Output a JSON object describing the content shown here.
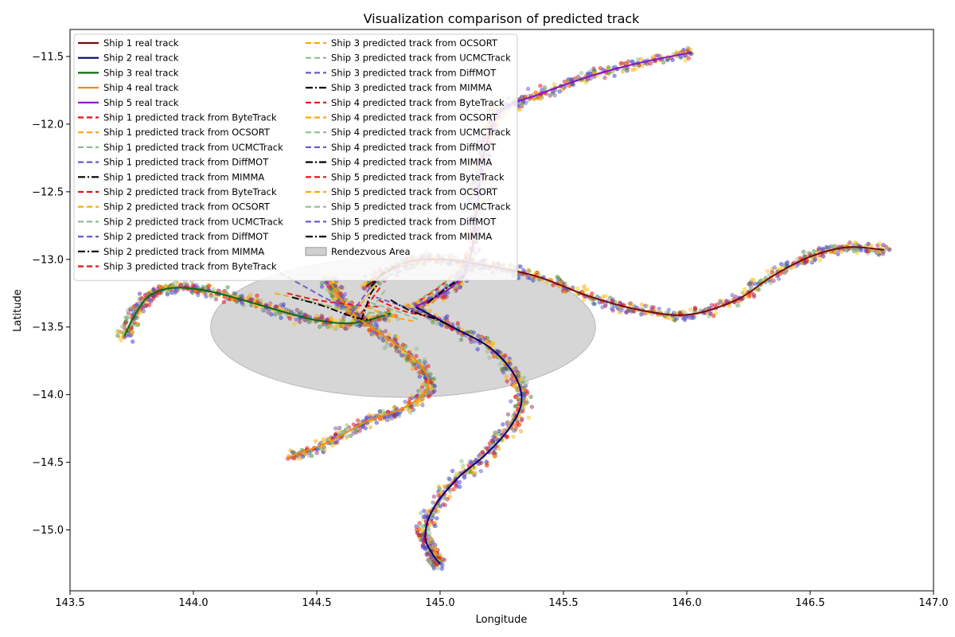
{
  "chart_data": {
    "type": "line",
    "title": "Visualization comparison of predicted track",
    "xlabel": "Longitude",
    "ylabel": "Latitude",
    "xlim": [
      143.5,
      147.0
    ],
    "ylim": [
      -15.45,
      -11.3
    ],
    "x_ticks": [
      "143.5",
      "144.0",
      "144.5",
      "145.0",
      "145.5",
      "146.0",
      "146.5",
      "147.0"
    ],
    "y_ticks": [
      "−11.5",
      "−12.0",
      "−12.5",
      "−13.0",
      "−13.5",
      "−14.0",
      "−14.5",
      "−15.0"
    ],
    "grid": false,
    "legend_position": "top-left",
    "legend_columns": 2,
    "rendezvous_area": {
      "label": "Rendezvous Area",
      "center": [
        144.85,
        -13.5
      ],
      "rx": 0.78,
      "ry": 0.52,
      "color": "#bbbbbb"
    },
    "series": [
      {
        "name": "Ship 1 real track",
        "kind": "real",
        "color": "#7a0a0a",
        "points": [
          [
            144.7,
            -13.2
          ],
          [
            144.85,
            -13.03
          ],
          [
            145.0,
            -13.0
          ],
          [
            145.2,
            -13.05
          ],
          [
            145.4,
            -13.13
          ],
          [
            145.6,
            -13.27
          ],
          [
            145.8,
            -13.37
          ],
          [
            146.0,
            -13.41
          ],
          [
            146.2,
            -13.3
          ],
          [
            146.35,
            -13.12
          ],
          [
            146.5,
            -12.98
          ],
          [
            146.65,
            -12.91
          ],
          [
            146.8,
            -12.93
          ]
        ]
      },
      {
        "name": "Ship 2 real track",
        "kind": "real",
        "color": "#00007a",
        "points": [
          [
            144.9,
            -13.35
          ],
          [
            145.05,
            -13.5
          ],
          [
            145.2,
            -13.65
          ],
          [
            145.3,
            -13.85
          ],
          [
            145.33,
            -14.05
          ],
          [
            145.28,
            -14.25
          ],
          [
            145.18,
            -14.45
          ],
          [
            145.07,
            -14.62
          ],
          [
            144.97,
            -14.85
          ],
          [
            144.94,
            -15.05
          ],
          [
            144.97,
            -15.18
          ],
          [
            145.0,
            -15.25
          ]
        ]
      },
      {
        "name": "Ship 3 real track",
        "kind": "real",
        "color": "#0a6b0a",
        "points": [
          [
            143.72,
            -13.57
          ],
          [
            143.76,
            -13.42
          ],
          [
            143.82,
            -13.27
          ],
          [
            143.92,
            -13.21
          ],
          [
            144.05,
            -13.23
          ],
          [
            144.2,
            -13.3
          ],
          [
            144.35,
            -13.38
          ],
          [
            144.5,
            -13.45
          ],
          [
            144.65,
            -13.47
          ],
          [
            144.8,
            -13.4
          ]
        ]
      },
      {
        "name": "Ship 4 real track",
        "kind": "real",
        "color": "#f08a10",
        "points": [
          [
            144.4,
            -14.45
          ],
          [
            144.55,
            -14.35
          ],
          [
            144.7,
            -14.2
          ],
          [
            144.85,
            -14.1
          ],
          [
            144.95,
            -13.95
          ],
          [
            144.92,
            -13.78
          ],
          [
            144.8,
            -13.6
          ],
          [
            144.68,
            -13.45
          ],
          [
            144.6,
            -13.3
          ],
          [
            144.55,
            -13.15
          ]
        ]
      },
      {
        "name": "Ship 5 real track",
        "kind": "real",
        "color": "#8a10c8",
        "points": [
          [
            144.9,
            -13.35
          ],
          [
            145.05,
            -13.2
          ],
          [
            145.12,
            -13.0
          ],
          [
            145.15,
            -12.6
          ],
          [
            145.18,
            -12.2
          ],
          [
            145.25,
            -11.9
          ],
          [
            145.4,
            -11.78
          ],
          [
            145.6,
            -11.65
          ],
          [
            145.8,
            -11.55
          ],
          [
            146.02,
            -11.47
          ]
        ]
      },
      {
        "name": "Ship 1 predicted track from ByteTrack",
        "kind": "dash",
        "color": "#e81010",
        "points": [
          [
            144.72,
            -13.15
          ],
          [
            144.8,
            -13.07
          ],
          [
            144.9,
            -13.05
          ]
        ]
      },
      {
        "name": "Ship 1 predicted track from OCSORT",
        "kind": "dash",
        "color": "#ffa500",
        "points": [
          [
            144.74,
            -13.12
          ],
          [
            144.82,
            -13.05
          ],
          [
            144.9,
            -13.02
          ]
        ]
      },
      {
        "name": "Ship 1 predicted track from UCMCTrack",
        "kind": "dash",
        "color": "#8fbc8f",
        "points": [
          [
            144.75,
            -13.15
          ],
          [
            144.83,
            -13.08
          ],
          [
            144.92,
            -13.04
          ]
        ]
      },
      {
        "name": "Ship 1 predicted track from DiffMOT",
        "kind": "dash",
        "color": "#6a5acd",
        "points": [
          [
            144.73,
            -13.18
          ],
          [
            144.82,
            -13.1
          ],
          [
            144.9,
            -13.06
          ]
        ]
      },
      {
        "name": "Ship 1 predicted track from MIMMA",
        "kind": "dashdot",
        "color": "#000000",
        "points": [
          [
            144.72,
            -13.2
          ],
          [
            144.77,
            -13.1
          ],
          [
            144.82,
            -13.05
          ]
        ]
      },
      {
        "name": "Ship 2 predicted track from ByteTrack",
        "kind": "dash",
        "color": "#e81010",
        "points": [
          [
            144.75,
            -13.3
          ],
          [
            144.85,
            -13.38
          ],
          [
            144.95,
            -13.42
          ]
        ]
      },
      {
        "name": "Ship 2 predicted track from OCSORT",
        "kind": "dash",
        "color": "#ffa500",
        "points": [
          [
            144.7,
            -13.35
          ],
          [
            144.8,
            -13.42
          ],
          [
            144.9,
            -13.46
          ]
        ]
      },
      {
        "name": "Ship 2 predicted track from UCMCTrack",
        "kind": "dash",
        "color": "#8fbc8f",
        "points": [
          [
            144.72,
            -13.32
          ],
          [
            144.82,
            -13.38
          ],
          [
            144.92,
            -13.45
          ]
        ]
      },
      {
        "name": "Ship 2 predicted track from DiffMOT",
        "kind": "dash",
        "color": "#6a5acd",
        "points": [
          [
            144.74,
            -13.28
          ],
          [
            144.84,
            -13.34
          ],
          [
            144.94,
            -13.4
          ]
        ]
      },
      {
        "name": "Ship 2 predicted track from MIMMA",
        "kind": "dashdot",
        "color": "#000000",
        "points": [
          [
            144.8,
            -13.3
          ],
          [
            144.88,
            -13.38
          ],
          [
            144.98,
            -13.44
          ],
          [
            145.05,
            -13.5
          ]
        ]
      },
      {
        "name": "Ship 3 predicted track from ByteTrack",
        "kind": "dash",
        "color": "#e81010",
        "points": [
          [
            144.38,
            -13.25
          ],
          [
            144.5,
            -13.3
          ],
          [
            144.62,
            -13.33
          ],
          [
            144.75,
            -13.35
          ]
        ]
      },
      {
        "name": "Ship 3 predicted track from OCSORT",
        "kind": "dash",
        "color": "#ffa500",
        "points": [
          [
            144.33,
            -13.25
          ],
          [
            144.45,
            -13.3
          ],
          [
            144.58,
            -13.36
          ],
          [
            144.72,
            -13.4
          ]
        ]
      },
      {
        "name": "Ship 3 predicted track from UCMCTrack",
        "kind": "dash",
        "color": "#8fbc8f",
        "points": [
          [
            144.4,
            -13.28
          ],
          [
            144.52,
            -13.33
          ],
          [
            144.64,
            -13.38
          ],
          [
            144.78,
            -13.4
          ]
        ]
      },
      {
        "name": "Ship 3 predicted track from DiffMOT",
        "kind": "dash",
        "color": "#6a5acd",
        "points": [
          [
            144.35,
            -13.1
          ],
          [
            144.45,
            -13.2
          ],
          [
            144.55,
            -13.3
          ],
          [
            144.65,
            -13.38
          ]
        ]
      },
      {
        "name": "Ship 3 predicted track from MIMMA",
        "kind": "dashdot",
        "color": "#000000",
        "points": [
          [
            144.4,
            -13.28
          ],
          [
            144.52,
            -13.34
          ],
          [
            144.64,
            -13.42
          ],
          [
            144.72,
            -13.45
          ]
        ]
      },
      {
        "name": "Ship 4 predicted track from ByteTrack",
        "kind": "dash",
        "color": "#e81010",
        "points": [
          [
            144.68,
            -13.4
          ],
          [
            144.72,
            -13.3
          ],
          [
            144.76,
            -13.2
          ]
        ]
      },
      {
        "name": "Ship 4 predicted track from OCSORT",
        "kind": "dash",
        "color": "#ffa500",
        "points": [
          [
            144.66,
            -13.38
          ],
          [
            144.7,
            -13.28
          ],
          [
            144.75,
            -13.18
          ]
        ]
      },
      {
        "name": "Ship 4 predicted track from UCMCTrack",
        "kind": "dash",
        "color": "#8fbc8f",
        "points": [
          [
            144.7,
            -13.42
          ],
          [
            144.74,
            -13.32
          ],
          [
            144.78,
            -13.22
          ]
        ]
      },
      {
        "name": "Ship 4 predicted track from DiffMOT",
        "kind": "dash",
        "color": "#6a5acd",
        "points": [
          [
            144.64,
            -13.4
          ],
          [
            144.68,
            -13.3
          ],
          [
            144.72,
            -13.2
          ]
        ]
      },
      {
        "name": "Ship 4 predicted track from MIMMA",
        "kind": "dashdot",
        "color": "#000000",
        "points": [
          [
            144.68,
            -13.45
          ],
          [
            144.7,
            -13.35
          ],
          [
            144.72,
            -13.25
          ],
          [
            144.75,
            -13.18
          ]
        ]
      },
      {
        "name": "Ship 5 predicted track from ByteTrack",
        "kind": "dash",
        "color": "#e81010",
        "points": [
          [
            144.92,
            -13.3
          ],
          [
            145.0,
            -13.2
          ],
          [
            145.06,
            -13.1
          ]
        ]
      },
      {
        "name": "Ship 5 predicted track from OCSORT",
        "kind": "dash",
        "color": "#ffa500",
        "points": [
          [
            144.9,
            -13.32
          ],
          [
            144.98,
            -13.22
          ],
          [
            145.05,
            -13.12
          ]
        ]
      },
      {
        "name": "Ship 5 predicted track from UCMCTrack",
        "kind": "dash",
        "color": "#8fbc8f",
        "points": [
          [
            144.93,
            -13.28
          ],
          [
            145.01,
            -13.18
          ],
          [
            145.08,
            -13.08
          ]
        ]
      },
      {
        "name": "Ship 5 predicted track from DiffMOT",
        "kind": "dash",
        "color": "#6a5acd",
        "points": [
          [
            144.95,
            -13.3
          ],
          [
            145.03,
            -13.2
          ],
          [
            145.1,
            -13.1
          ]
        ]
      },
      {
        "name": "Ship 5 predicted track from MIMMA",
        "kind": "dashdot",
        "color": "#000000",
        "points": [
          [
            144.95,
            -13.32
          ],
          [
            145.02,
            -13.22
          ],
          [
            145.1,
            -13.12
          ]
        ]
      }
    ]
  }
}
